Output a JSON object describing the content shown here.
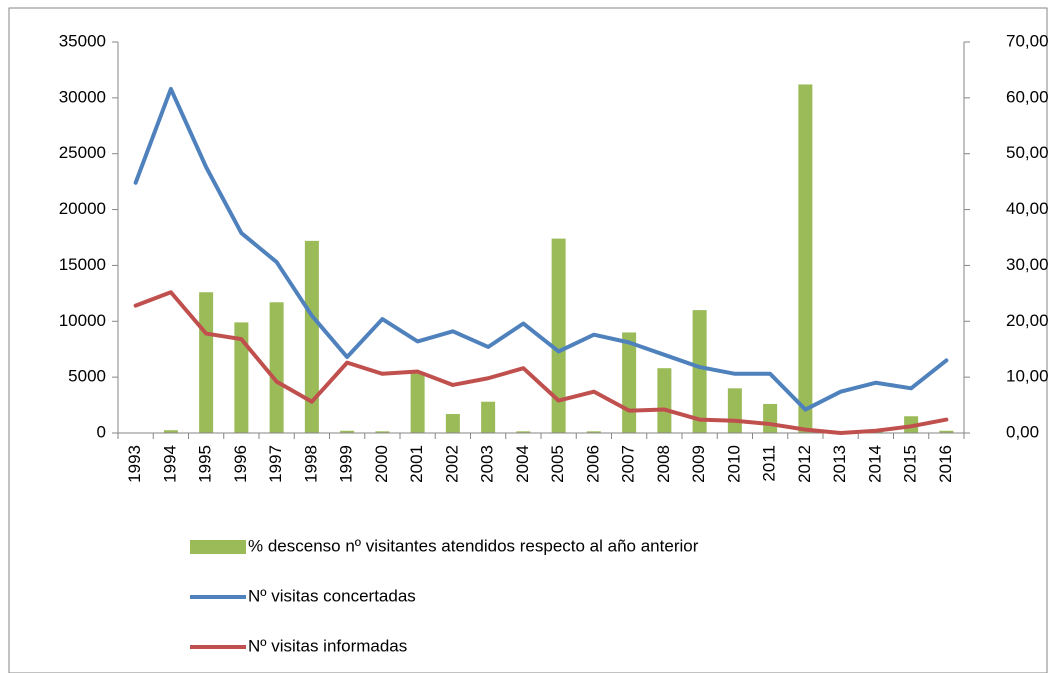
{
  "chart_data": {
    "type": "bar_line",
    "categories": [
      "1993",
      "1994",
      "1995",
      "1996",
      "1997",
      "1998",
      "1999",
      "2000",
      "2001",
      "2002",
      "2003",
      "2004",
      "2005",
      "2006",
      "2007",
      "2008",
      "2009",
      "2010",
      "2011",
      "2012",
      "2013",
      "2014",
      "2015",
      "2016"
    ],
    "series": [
      {
        "name": "% descenso nº visitantes atendidos respecto al año anterior",
        "type": "bar",
        "axis": "y2",
        "color": "#9bbb59",
        "values": [
          0,
          0.5,
          25.2,
          19.8,
          23.4,
          34.4,
          0.4,
          0.3,
          10.8,
          3.4,
          5.6,
          0.3,
          34.8,
          0.3,
          18,
          11.6,
          22,
          8,
          5.2,
          62.4,
          0,
          0.3,
          3,
          0.4
        ]
      },
      {
        "name": "Nº visitas concertadas",
        "type": "line",
        "color": "#4f81bd",
        "values": [
          22400,
          30800,
          23800,
          17900,
          15300,
          10500,
          6800,
          10200,
          8200,
          9100,
          7700,
          9800,
          7300,
          8800,
          8100,
          7000,
          5900,
          5300,
          5300,
          2100,
          3700,
          4500,
          4000,
          6500
        ]
      },
      {
        "name": "Nº visitas informadas",
        "type": "line",
        "color": "#c0504d",
        "values": [
          11400,
          12600,
          8900,
          8400,
          4600,
          2800,
          6300,
          5300,
          5500,
          4300,
          4900,
          5800,
          2900,
          3700,
          2000,
          2100,
          1200,
          1100,
          800,
          300,
          0,
          200,
          600,
          1200
        ]
      }
    ],
    "ylim": [
      0,
      35000
    ],
    "yticks": [
      0,
      5000,
      10000,
      15000,
      20000,
      25000,
      30000,
      35000
    ],
    "y2lim": [
      0,
      70
    ],
    "y2ticks": [
      {
        "value": 0,
        "label": "0,00"
      },
      {
        "value": 10,
        "label": "10,00"
      },
      {
        "value": 20,
        "label": "20,00"
      },
      {
        "value": 30,
        "label": "30,00"
      },
      {
        "value": 40,
        "label": "40,00"
      },
      {
        "value": 50,
        "label": "50,00"
      },
      {
        "value": 60,
        "label": "60,00"
      },
      {
        "value": 70,
        "label": "70,00"
      }
    ],
    "grid": false,
    "legend": "bottom"
  }
}
